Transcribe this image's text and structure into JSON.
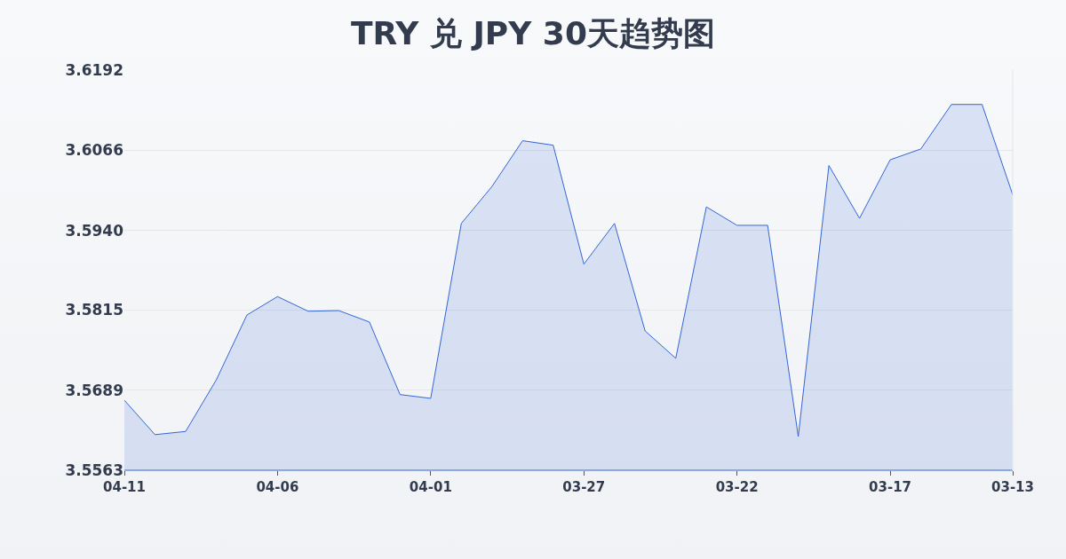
{
  "chart_data": {
    "type": "area",
    "title": "TRY 兑 JPY 30天趋势图",
    "categories": [
      "04-11",
      null,
      null,
      null,
      null,
      "04-06",
      null,
      null,
      null,
      null,
      "04-01",
      null,
      null,
      null,
      null,
      "03-27",
      null,
      null,
      null,
      null,
      "03-22",
      null,
      null,
      null,
      null,
      "03-17",
      null,
      null,
      null,
      "03-13"
    ],
    "series": [
      {
        "color": "#3366d6",
        "values": [
          3.5673,
          3.5619,
          3.5624,
          3.5705,
          3.5807,
          3.5836,
          3.5813,
          3.5814,
          3.5796,
          3.5682,
          3.5676,
          3.5951,
          3.6009,
          3.6081,
          3.6074,
          3.5887,
          3.5951,
          3.5782,
          3.5739,
          3.5977,
          3.5948,
          3.5948,
          3.5616,
          3.6042,
          3.5959,
          3.6051,
          3.6068,
          3.6138,
          3.6138,
          3.5996
        ]
      }
    ],
    "ylim": [
      3.5563,
      3.6192
    ],
    "yticks": [
      3.5563,
      3.5689,
      3.5815,
      {
        "value": 3.594,
        "label": "3.5940"
      },
      3.6066,
      3.6192
    ],
    "grid": "y",
    "marker": "none",
    "line_style": "solid"
  }
}
